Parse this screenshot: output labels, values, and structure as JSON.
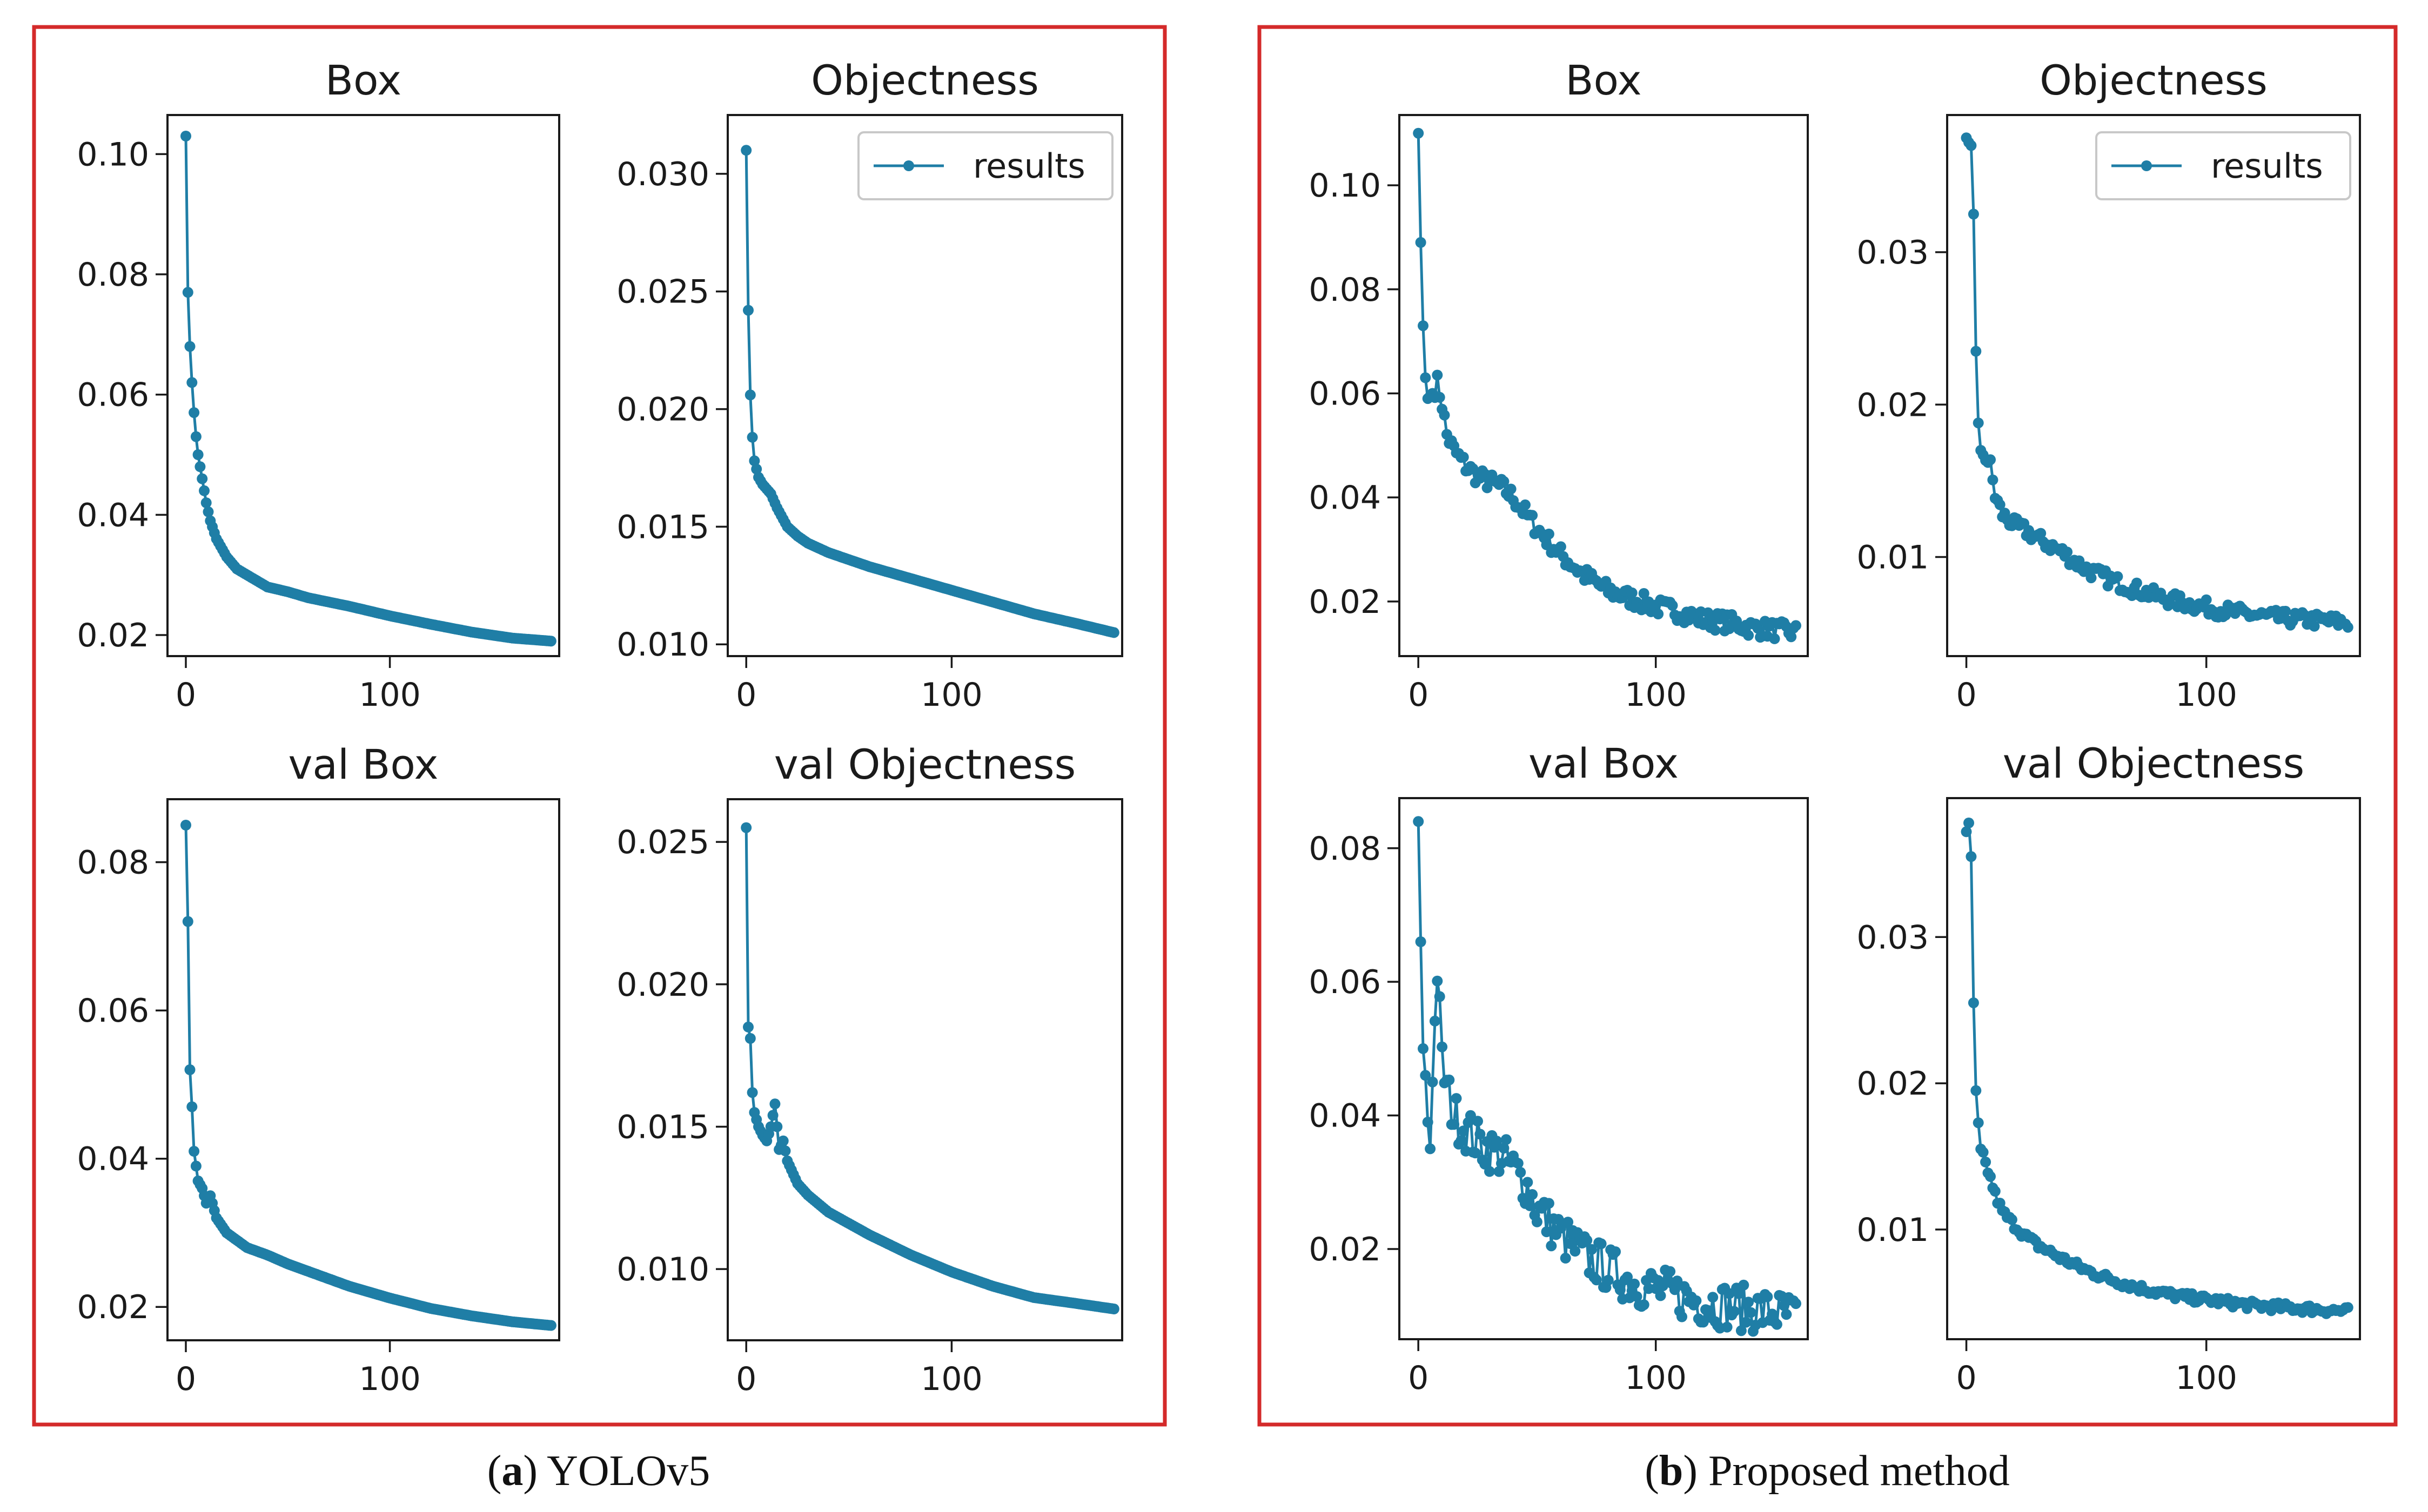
{
  "colors": {
    "series": "#1f7ea6",
    "frame": "#d42a2a",
    "axis": "#1a1a1a"
  },
  "captions": [
    {
      "letter": "a",
      "text": ") YOLOv5"
    },
    {
      "letter": "b",
      "text": ") Proposed method"
    }
  ],
  "chart_data": [
    {
      "type": "line",
      "group": "a",
      "title": "Box",
      "xlabel": "",
      "ylabel": "",
      "xlim": [
        -9,
        183
      ],
      "ylim": [
        0.0165,
        0.1065
      ],
      "xticks": [
        0,
        100
      ],
      "yticks": [
        0.02,
        0.04,
        0.06,
        0.08,
        0.1
      ],
      "ytick_labels": [
        "0.02",
        "0.04",
        "0.06",
        "0.08",
        "0.10"
      ],
      "legend": null,
      "n_points": 180,
      "series": [
        {
          "name": "results",
          "x": [
            0,
            1,
            2,
            3,
            4,
            5,
            6,
            8,
            10,
            12,
            15,
            20,
            25,
            30,
            40,
            50,
            60,
            80,
            100,
            120,
            140,
            160,
            179
          ],
          "y": [
            0.103,
            0.077,
            0.068,
            0.062,
            0.057,
            0.053,
            0.05,
            0.046,
            0.042,
            0.039,
            0.036,
            0.033,
            0.031,
            0.03,
            0.028,
            0.0272,
            0.0262,
            0.0248,
            0.0232,
            0.0218,
            0.0205,
            0.0195,
            0.019
          ]
        }
      ]
    },
    {
      "type": "line",
      "group": "a",
      "title": "Objectness",
      "xlabel": "",
      "ylabel": "",
      "xlim": [
        -9,
        183
      ],
      "ylim": [
        0.0095,
        0.0325
      ],
      "xticks": [
        0,
        100
      ],
      "yticks": [
        0.01,
        0.015,
        0.02,
        0.025,
        0.03
      ],
      "ytick_labels": [
        "0.010",
        "0.015",
        "0.020",
        "0.025",
        "0.030"
      ],
      "legend": {
        "label": "results",
        "position": "upper right"
      },
      "n_points": 180,
      "series": [
        {
          "name": "results",
          "x": [
            0,
            1,
            2,
            3,
            4,
            6,
            8,
            10,
            12,
            15,
            20,
            25,
            30,
            40,
            50,
            60,
            80,
            100,
            120,
            140,
            160,
            179
          ],
          "y": [
            0.031,
            0.0242,
            0.0206,
            0.0188,
            0.0178,
            0.0171,
            0.0168,
            0.0166,
            0.0164,
            0.0158,
            0.015,
            0.0146,
            0.0143,
            0.0139,
            0.0136,
            0.0133,
            0.0128,
            0.0123,
            0.0118,
            0.0113,
            0.0109,
            0.0105
          ]
        }
      ]
    },
    {
      "type": "line",
      "group": "a",
      "title": "val Box",
      "xlabel": "",
      "ylabel": "",
      "xlim": [
        -9,
        183
      ],
      "ylim": [
        0.0155,
        0.0885
      ],
      "xticks": [
        0,
        100
      ],
      "yticks": [
        0.02,
        0.04,
        0.06,
        0.08
      ],
      "ytick_labels": [
        "0.02",
        "0.04",
        "0.06",
        "0.08"
      ],
      "legend": null,
      "n_points": 180,
      "series": [
        {
          "name": "results",
          "x": [
            0,
            1,
            2,
            3,
            4,
            5,
            6,
            8,
            10,
            12,
            15,
            20,
            25,
            30,
            40,
            50,
            60,
            80,
            100,
            120,
            140,
            160,
            179
          ],
          "y": [
            0.085,
            0.072,
            0.052,
            0.047,
            0.041,
            0.039,
            0.037,
            0.036,
            0.034,
            0.035,
            0.032,
            0.03,
            0.029,
            0.028,
            0.027,
            0.0258,
            0.0248,
            0.0228,
            0.0212,
            0.0198,
            0.0188,
            0.018,
            0.0175
          ]
        }
      ]
    },
    {
      "type": "line",
      "group": "a",
      "title": "val Objectness",
      "xlabel": "",
      "ylabel": "",
      "xlim": [
        -9,
        183
      ],
      "ylim": [
        0.0075,
        0.0265
      ],
      "xticks": [
        0,
        100
      ],
      "yticks": [
        0.01,
        0.015,
        0.02,
        0.025
      ],
      "ytick_labels": [
        "0.010",
        "0.015",
        "0.020",
        "0.025"
      ],
      "legend": null,
      "n_points": 180,
      "series": [
        {
          "name": "results",
          "x": [
            0,
            1,
            2,
            3,
            4,
            6,
            8,
            10,
            12,
            14,
            16,
            18,
            20,
            25,
            30,
            40,
            50,
            60,
            80,
            100,
            120,
            140,
            160,
            179
          ],
          "y": [
            0.0255,
            0.0185,
            0.0181,
            0.0162,
            0.0155,
            0.015,
            0.0147,
            0.0145,
            0.015,
            0.0158,
            0.0142,
            0.0145,
            0.0138,
            0.013,
            0.0126,
            0.012,
            0.0116,
            0.0112,
            0.0105,
            0.0099,
            0.0094,
            0.009,
            0.0088,
            0.0086
          ]
        }
      ]
    },
    {
      "type": "line",
      "group": "b",
      "title": "Box",
      "xlabel": "",
      "ylabel": "",
      "xlim": [
        -8,
        164
      ],
      "ylim": [
        0.0095,
        0.1135
      ],
      "xticks": [
        0,
        100
      ],
      "yticks": [
        0.02,
        0.04,
        0.06,
        0.08,
        0.1
      ],
      "ytick_labels": [
        "0.02",
        "0.04",
        "0.06",
        "0.08",
        "0.10"
      ],
      "legend": null,
      "n_points": 160,
      "noise": 0.0018,
      "series": [
        {
          "name": "results",
          "x": [
            0,
            1,
            2,
            3,
            4,
            6,
            8,
            10,
            12,
            15,
            20,
            25,
            30,
            35,
            40,
            50,
            60,
            70,
            80,
            90,
            100,
            110,
            120,
            130,
            140,
            150,
            159
          ],
          "y": [
            0.11,
            0.089,
            0.073,
            0.063,
            0.059,
            0.06,
            0.062,
            0.058,
            0.052,
            0.049,
            0.046,
            0.044,
            0.043,
            0.042,
            0.04,
            0.034,
            0.029,
            0.025,
            0.022,
            0.0205,
            0.019,
            0.018,
            0.0165,
            0.016,
            0.015,
            0.0145,
            0.014
          ]
        }
      ]
    },
    {
      "type": "line",
      "group": "b",
      "title": "Objectness",
      "xlabel": "",
      "ylabel": "",
      "xlim": [
        -8,
        164
      ],
      "ylim": [
        0.0035,
        0.039
      ],
      "xticks": [
        0,
        100
      ],
      "yticks": [
        0.01,
        0.02,
        0.03
      ],
      "ytick_labels": [
        "0.01",
        "0.02",
        "0.03"
      ],
      "legend": {
        "label": "results",
        "position": "upper right"
      },
      "n_points": 160,
      "noise": 0.0005,
      "series": [
        {
          "name": "results",
          "x": [
            0,
            1,
            2,
            3,
            4,
            5,
            6,
            8,
            10,
            12,
            15,
            20,
            25,
            30,
            40,
            50,
            60,
            70,
            80,
            90,
            100,
            110,
            120,
            130,
            140,
            150,
            159
          ],
          "y": [
            0.0375,
            0.0372,
            0.037,
            0.0325,
            0.0235,
            0.0188,
            0.017,
            0.0166,
            0.016,
            0.014,
            0.0128,
            0.0121,
            0.0117,
            0.0112,
            0.0103,
            0.0092,
            0.0085,
            0.0079,
            0.0074,
            0.007,
            0.0067,
            0.0064,
            0.0062,
            0.006,
            0.0059,
            0.0058,
            0.0057
          ]
        }
      ]
    },
    {
      "type": "line",
      "group": "b",
      "title": "val Box",
      "xlabel": "",
      "ylabel": "",
      "xlim": [
        -8,
        164
      ],
      "ylim": [
        0.0065,
        0.0875
      ],
      "xticks": [
        0,
        100
      ],
      "yticks": [
        0.02,
        0.04,
        0.06,
        0.08
      ],
      "ytick_labels": [
        "0.02",
        "0.04",
        "0.06",
        "0.08"
      ],
      "legend": null,
      "n_points": 160,
      "noise": 0.0035,
      "series": [
        {
          "name": "results",
          "x": [
            0,
            1,
            2,
            3,
            4,
            5,
            6,
            8,
            10,
            12,
            15,
            20,
            25,
            30,
            35,
            40,
            45,
            50,
            60,
            70,
            80,
            90,
            100,
            110,
            120,
            130,
            140,
            150,
            159
          ],
          "y": [
            0.084,
            0.066,
            0.05,
            0.046,
            0.039,
            0.035,
            0.045,
            0.062,
            0.048,
            0.044,
            0.04,
            0.038,
            0.036,
            0.035,
            0.034,
            0.032,
            0.03,
            0.026,
            0.022,
            0.019,
            0.017,
            0.015,
            0.014,
            0.013,
            0.012,
            0.0115,
            0.011,
            0.0105,
            0.01
          ]
        }
      ]
    },
    {
      "type": "line",
      "group": "b",
      "title": "val Objectness",
      "xlabel": "",
      "ylabel": "",
      "xlim": [
        -8,
        164
      ],
      "ylim": [
        0.0025,
        0.0395
      ],
      "xticks": [
        0,
        100
      ],
      "yticks": [
        0.01,
        0.02,
        0.03
      ],
      "ytick_labels": [
        "0.01",
        "0.02",
        "0.03"
      ],
      "legend": null,
      "n_points": 160,
      "noise": 0.0003,
      "series": [
        {
          "name": "results",
          "x": [
            0,
            1,
            2,
            3,
            4,
            5,
            6,
            8,
            10,
            12,
            15,
            20,
            25,
            30,
            40,
            50,
            60,
            70,
            80,
            90,
            100,
            110,
            120,
            130,
            140,
            150,
            159
          ],
          "y": [
            0.0372,
            0.0378,
            0.0355,
            0.0255,
            0.0195,
            0.0173,
            0.0155,
            0.0145,
            0.0135,
            0.0124,
            0.0112,
            0.0103,
            0.0095,
            0.0089,
            0.008,
            0.0072,
            0.0066,
            0.0061,
            0.0057,
            0.0054,
            0.0052,
            0.005,
            0.0048,
            0.0047,
            0.0046,
            0.0045,
            0.0044
          ]
        }
      ]
    }
  ]
}
